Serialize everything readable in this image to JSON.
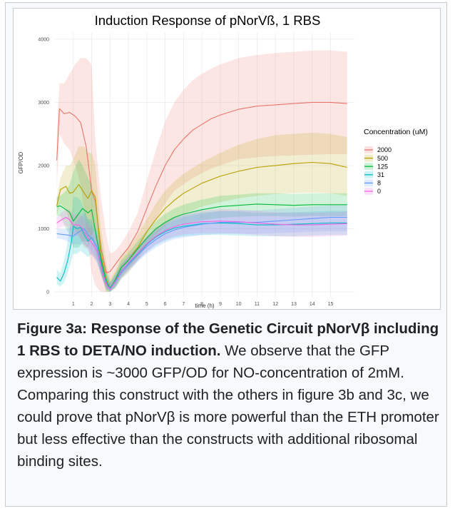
{
  "chart_data": {
    "type": "line",
    "title": "Induction Response of pNorVß, 1 RBS",
    "xlabel": "time (h)",
    "ylabel": "GFP/OD",
    "xlim": [
      0,
      16.3
    ],
    "ylim": [
      -80,
      4100
    ],
    "x_ticks": [
      1,
      2,
      3,
      4,
      5,
      6,
      7,
      8,
      9,
      10,
      11,
      12,
      13,
      14,
      15
    ],
    "y_ticks": [
      0,
      1000,
      2000,
      3000,
      4000
    ],
    "grid": true,
    "shaded_band": "confidence ribbon around each series",
    "legend": {
      "title": "Concentration (uM)",
      "position": "right"
    },
    "series": [
      {
        "name": "2000",
        "color": "#e8756a",
        "x": [
          0.1,
          0.25,
          0.5,
          0.8,
          1.1,
          1.4,
          1.7,
          2.0,
          2.2,
          2.5,
          2.8,
          3.0,
          3.3,
          3.6,
          4.0,
          4.5,
          5.0,
          5.5,
          6.0,
          6.5,
          7.0,
          7.5,
          8.0,
          8.5,
          9.0,
          10.0,
          11.0,
          12.0,
          13.0,
          14.0,
          15.0,
          15.9
        ],
        "y": [
          2080,
          2900,
          2820,
          2840,
          2780,
          2680,
          2300,
          1600,
          1430,
          700,
          300,
          320,
          440,
          560,
          700,
          950,
          1320,
          1680,
          2000,
          2250,
          2420,
          2560,
          2650,
          2740,
          2800,
          2890,
          2940,
          2960,
          2980,
          3000,
          3000,
          2980
        ],
        "lower": [
          1600,
          2500,
          2350,
          2250,
          2000,
          1700,
          1000,
          300,
          100,
          0,
          0,
          100,
          250,
          370,
          500,
          700,
          950,
          1150,
          1400,
          1600,
          1700,
          1800,
          1880,
          1950,
          2000,
          2100,
          2130,
          2150,
          2160,
          2170,
          2180,
          2180
        ],
        "upper": [
          2500,
          3300,
          3300,
          3450,
          3600,
          3700,
          3700,
          3600,
          2400,
          1500,
          900,
          600,
          650,
          760,
          950,
          1250,
          1750,
          2250,
          2700,
          3000,
          3200,
          3350,
          3450,
          3530,
          3600,
          3700,
          3750,
          3780,
          3800,
          3820,
          3820,
          3800
        ]
      },
      {
        "name": "500",
        "color": "#b79f00",
        "x": [
          0.1,
          0.3,
          0.6,
          0.8,
          1.0,
          1.3,
          1.6,
          1.8,
          2.0,
          2.2,
          2.5,
          2.8,
          3.0,
          3.3,
          3.6,
          4.0,
          4.5,
          5.0,
          5.5,
          6.0,
          6.5,
          7.0,
          8.0,
          9.0,
          10.0,
          11.0,
          12.0,
          13.0,
          14.0,
          15.0,
          15.9
        ],
        "y": [
          1360,
          1620,
          1670,
          1560,
          1580,
          1700,
          1560,
          1480,
          1600,
          1500,
          600,
          200,
          60,
          200,
          380,
          500,
          700,
          950,
          1150,
          1320,
          1450,
          1560,
          1720,
          1830,
          1910,
          1970,
          2000,
          2030,
          2050,
          2030,
          1970
        ],
        "lower": [
          1200,
          1400,
          1300,
          1100,
          1000,
          900,
          700,
          700,
          900,
          1000,
          300,
          0,
          0,
          50,
          200,
          300,
          500,
          750,
          900,
          1050,
          1150,
          1230,
          1350,
          1420,
          1480,
          1520,
          1550,
          1560,
          1570,
          1560,
          1520
        ],
        "upper": [
          1500,
          1800,
          2000,
          2000,
          2100,
          2300,
          2300,
          2200,
          2200,
          2000,
          1000,
          450,
          200,
          350,
          550,
          700,
          900,
          1150,
          1400,
          1600,
          1750,
          1870,
          2050,
          2200,
          2330,
          2420,
          2480,
          2500,
          2520,
          2500,
          2450
        ]
      },
      {
        "name": "125",
        "color": "#00ba38",
        "x": [
          0.1,
          0.3,
          0.6,
          0.8,
          1.0,
          1.3,
          1.5,
          1.8,
          2.0,
          2.3,
          2.6,
          2.8,
          3.0,
          3.3,
          3.6,
          4.0,
          4.5,
          5.0,
          5.5,
          6.0,
          6.5,
          7.0,
          8.0,
          9.0,
          10.0,
          11.0,
          12.0,
          13.0,
          14.0,
          15.0,
          15.9
        ],
        "y": [
          1350,
          1360,
          1300,
          1260,
          1120,
          1240,
          1320,
          1250,
          1300,
          800,
          400,
          160,
          40,
          200,
          380,
          500,
          680,
          850,
          1000,
          1100,
          1180,
          1230,
          1300,
          1350,
          1370,
          1390,
          1380,
          1370,
          1380,
          1380,
          1380
        ],
        "lower": [
          1200,
          1200,
          1000,
          900,
          700,
          700,
          800,
          800,
          900,
          500,
          200,
          0,
          0,
          80,
          250,
          380,
          560,
          730,
          870,
          960,
          1030,
          1070,
          1130,
          1170,
          1190,
          1200,
          1200,
          1190,
          1200,
          1200,
          1200
        ],
        "upper": [
          1500,
          1520,
          1600,
          1700,
          1900,
          2100,
          2000,
          1800,
          1700,
          1200,
          650,
          350,
          150,
          300,
          500,
          620,
          800,
          970,
          1120,
          1230,
          1320,
          1380,
          1460,
          1520,
          1540,
          1560,
          1560,
          1550,
          1560,
          1560,
          1560
        ]
      },
      {
        "name": "31",
        "color": "#00bfc4",
        "x": [
          0.1,
          0.3,
          0.5,
          0.7,
          0.9,
          1.0,
          1.2,
          1.4,
          1.6,
          1.8,
          2.0,
          2.3,
          2.6,
          2.8,
          3.0,
          3.3,
          3.6,
          4.0,
          4.5,
          5.0,
          5.5,
          6.0,
          6.5,
          7.0,
          8.0,
          9.0,
          10.0,
          11.0,
          12.0,
          13.0,
          14.0,
          15.0,
          15.9
        ],
        "y": [
          230,
          170,
          300,
          500,
          800,
          1040,
          1000,
          1020,
          900,
          800,
          860,
          700,
          350,
          150,
          60,
          180,
          330,
          450,
          600,
          750,
          870,
          950,
          1010,
          1040,
          1080,
          1090,
          1080,
          1060,
          1060,
          1070,
          1080,
          1090,
          1090
        ],
        "lower": [
          120,
          80,
          150,
          300,
          500,
          600,
          600,
          650,
          600,
          550,
          600,
          450,
          200,
          50,
          0,
          80,
          220,
          350,
          490,
          630,
          740,
          810,
          860,
          880,
          900,
          900,
          890,
          880,
          880,
          880,
          890,
          900,
          900
        ],
        "upper": [
          350,
          300,
          500,
          800,
          1200,
          1500,
          1500,
          1450,
          1300,
          1150,
          1150,
          950,
          500,
          300,
          150,
          280,
          440,
          560,
          710,
          870,
          1000,
          1100,
          1170,
          1210,
          1260,
          1280,
          1270,
          1250,
          1250,
          1260,
          1270,
          1280,
          1280
        ]
      },
      {
        "name": "8",
        "color": "#619cff",
        "x": [
          0.1,
          0.4,
          0.7,
          1.0,
          1.3,
          1.6,
          1.8,
          2.0,
          2.3,
          2.6,
          2.8,
          3.0,
          3.3,
          3.6,
          4.0,
          4.5,
          5.0,
          5.5,
          6.0,
          6.5,
          7.0,
          8.0,
          9.0,
          10.0,
          11.0,
          12.0,
          13.0,
          14.0,
          15.0,
          15.9
        ],
        "y": [
          920,
          910,
          900,
          880,
          950,
          1000,
          900,
          850,
          700,
          300,
          120,
          40,
          160,
          300,
          430,
          580,
          720,
          830,
          920,
          980,
          1020,
          1070,
          1100,
          1100,
          1100,
          1120,
          1140,
          1160,
          1180,
          1180
        ],
        "lower": [
          850,
          830,
          800,
          750,
          750,
          750,
          700,
          650,
          500,
          200,
          50,
          0,
          70,
          200,
          320,
          470,
          600,
          700,
          780,
          830,
          860,
          900,
          920,
          920,
          920,
          930,
          940,
          950,
          960,
          960
        ],
        "upper": [
          1000,
          990,
          1000,
          1050,
          1150,
          1250,
          1150,
          1050,
          900,
          450,
          250,
          130,
          250,
          400,
          540,
          690,
          840,
          960,
          1060,
          1130,
          1180,
          1240,
          1280,
          1290,
          1290,
          1310,
          1330,
          1350,
          1370,
          1370
        ]
      },
      {
        "name": "0",
        "color": "#f564e3",
        "x": [
          0.1,
          0.3,
          0.6,
          0.8,
          1.0,
          1.3,
          1.5,
          1.8,
          2.0,
          2.3,
          2.6,
          2.8,
          3.0,
          3.3,
          3.6,
          4.0,
          4.5,
          5.0,
          5.5,
          6.0,
          6.5,
          7.0,
          8.0,
          9.0,
          10.0,
          11.0,
          12.0,
          13.0,
          14.0,
          15.0,
          15.9
        ],
        "y": [
          1090,
          1130,
          1180,
          1140,
          1060,
          1060,
          1000,
          850,
          780,
          650,
          300,
          120,
          40,
          170,
          320,
          460,
          610,
          760,
          880,
          970,
          1030,
          1070,
          1110,
          1120,
          1110,
          1090,
          1070,
          1060,
          1060,
          1070,
          1080
        ],
        "lower": [
          1000,
          1020,
          1050,
          980,
          900,
          880,
          800,
          650,
          580,
          480,
          180,
          40,
          0,
          80,
          220,
          350,
          500,
          640,
          750,
          830,
          880,
          910,
          930,
          930,
          920,
          900,
          880,
          870,
          870,
          880,
          890
        ],
        "upper": [
          1180,
          1240,
          1310,
          1300,
          1220,
          1240,
          1200,
          1050,
          980,
          820,
          420,
          220,
          120,
          260,
          420,
          570,
          720,
          880,
          1010,
          1110,
          1180,
          1230,
          1290,
          1310,
          1300,
          1280,
          1260,
          1250,
          1250,
          1260,
          1270
        ]
      }
    ]
  },
  "caption": {
    "title": "Figure 3a: Response of the Genetic Circuit pNorVβ including 1 RBS to DETA/NO induction.",
    "body": "We observe that the GFP expression is ~3000 GFP/OD for NO-concentration of 2mM. Comparing this construct with the others in figure 3b and 3c, we could prove that pNorVβ is more powerful than the ETH promoter but less effective than the constructs with additional ribosomal binding sites."
  }
}
